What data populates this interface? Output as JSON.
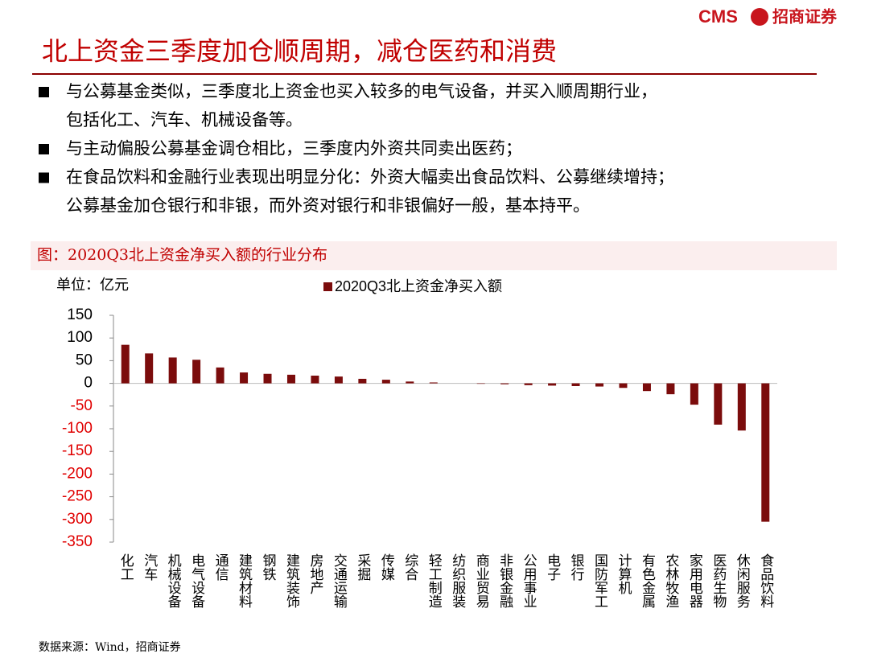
{
  "header": {
    "logo": "CMS",
    "brand": "招商证券",
    "title": "北上资金三季度加仓顺周期，减仓医药和消费"
  },
  "bullets": [
    [
      "与公募基金类似，三季度北上资金也买入较多的电气设备，并买入顺周期行业，",
      "包括化工、汽车、机械设备等。"
    ],
    [
      "与主动偏股公募基金调仓相比，三季度内外资共同卖出医药；"
    ],
    [
      "在食品饮料和金融行业表现出明显分化：外资大幅卖出食品饮料、公募继续增持；",
      "公募基金加仓银行和非银，而外资对银行和非银偏好一般，基本持平。"
    ]
  ],
  "chart_data": {
    "type": "bar",
    "title": "图：2020Q3北上资金净买入额的行业分布",
    "unit": "单位：亿元",
    "categories": [
      "化工",
      "汽车",
      "机械设备",
      "电气设备",
      "通信",
      "建筑材料",
      "钢铁",
      "建筑装饰",
      "房地产",
      "交通运输",
      "采掘",
      "传媒",
      "综合",
      "轻工制造",
      "纺织服装",
      "商业贸易",
      "非银金融",
      "公用事业",
      "电子",
      "银行",
      "国防军工",
      "计算机",
      "有色金属",
      "农林牧渔",
      "家用电器",
      "医药生物",
      "休闲服务",
      "食品饮料"
    ],
    "series": [
      {
        "name": "2020Q3北上资金净买入额",
        "color": "#7b0c0c",
        "values": [
          85,
          66,
          57,
          52,
          35,
          24,
          21,
          19,
          17,
          15,
          10,
          8,
          4,
          2,
          0,
          -1,
          -2,
          -4,
          -5,
          -6,
          -7,
          -10,
          -17,
          -24,
          -47,
          -91,
          -104,
          -305
        ]
      }
    ],
    "ylim": [
      -350,
      150
    ],
    "yticks": [
      150,
      100,
      50,
      0,
      -50,
      -100,
      -150,
      -200,
      -250,
      -300,
      -350
    ],
    "grid": false
  },
  "source": "数据来源：Wind，招商证券"
}
